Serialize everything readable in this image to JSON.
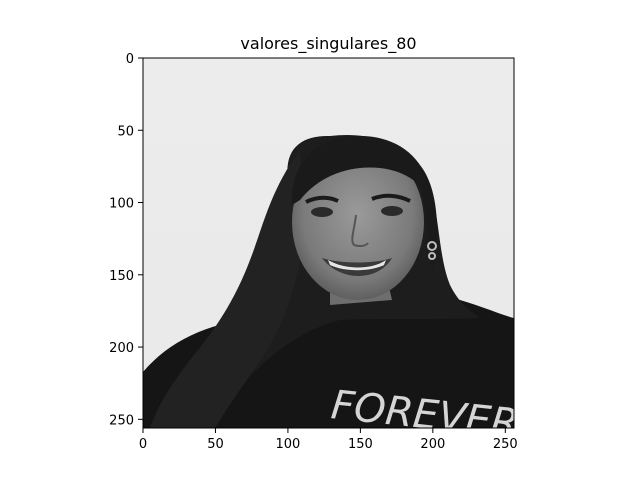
{
  "title": "valores_singulares_80",
  "image": {
    "description_colors": {
      "background": "#ececec",
      "hair": "#1e1e1e",
      "skin": "#8a8a8a",
      "shirt": "#141414"
    },
    "shirt_text": "FOREVER"
  },
  "axes": {
    "xlim": [
      0,
      256
    ],
    "ylim": [
      256,
      0
    ],
    "x_ticks": [
      "0",
      "50",
      "100",
      "150",
      "200",
      "250"
    ],
    "y_ticks": [
      "0",
      "50",
      "100",
      "150",
      "200",
      "250"
    ]
  }
}
